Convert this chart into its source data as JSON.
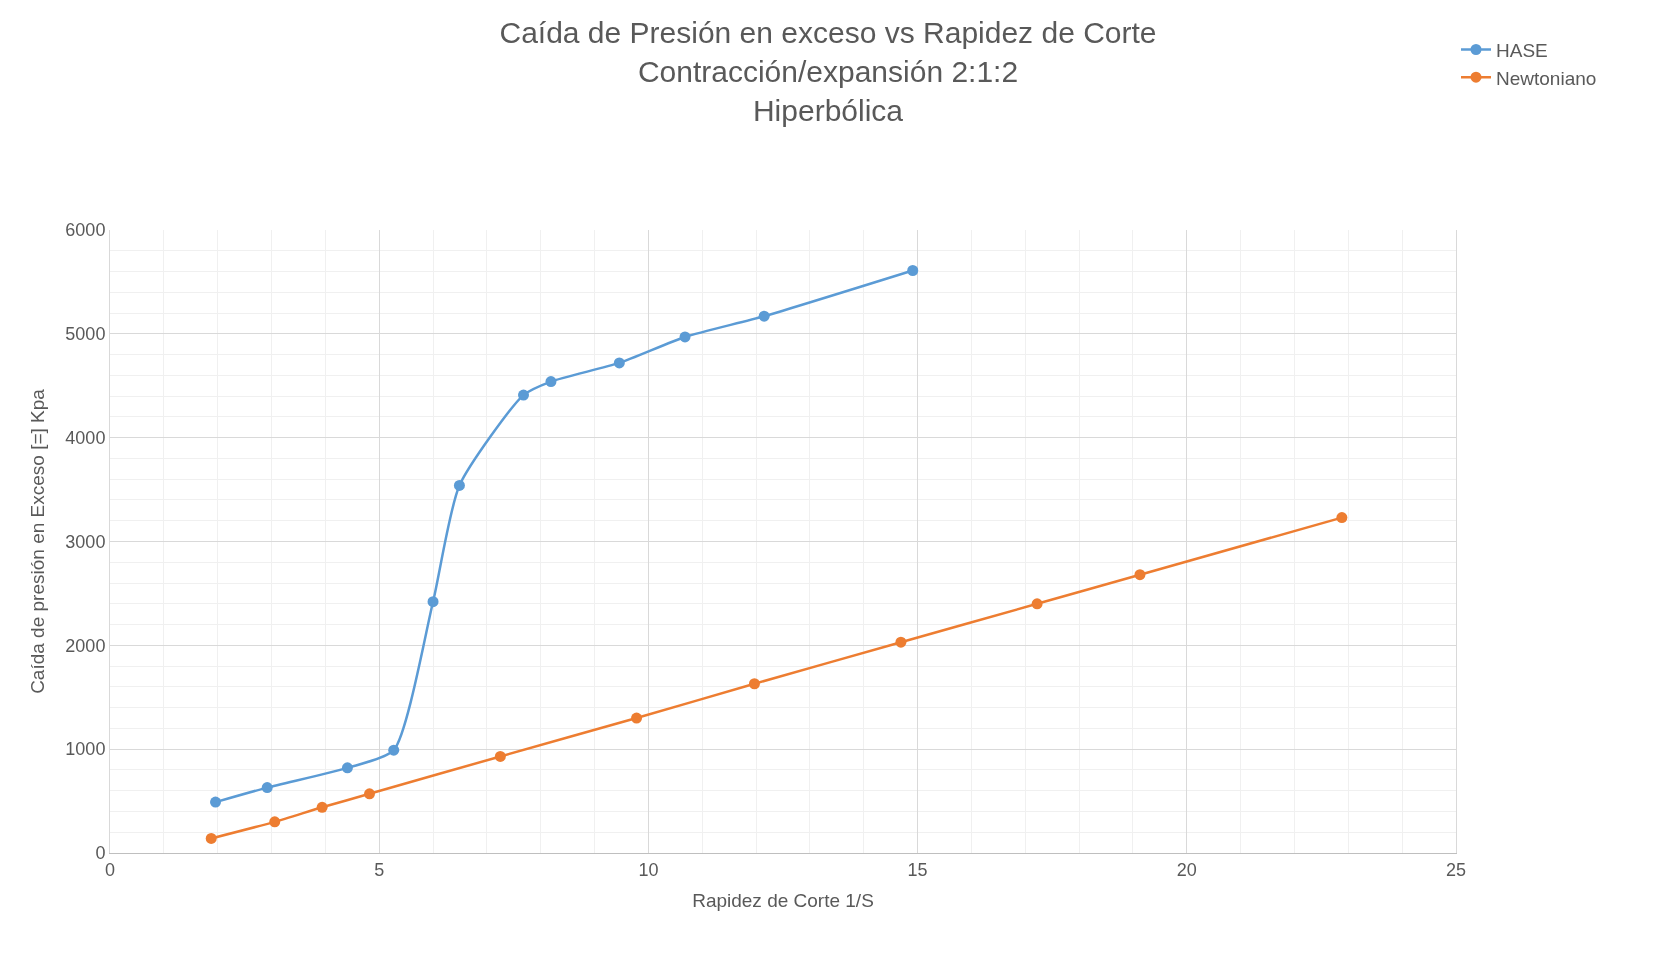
{
  "chart_data": {
    "type": "line",
    "title": "Caída de Presión en exceso vs Rapidez de Corte\nContracción/expansión 2:1:2\nHiperbólica",
    "xlabel": "Rapidez de Corte 1/S",
    "ylabel": "Caída de presión en Exceso [=] Kpa",
    "series": [
      {
        "name": "HASE",
        "color": "#5b9bd5",
        "x": [
          1.96,
          2.92,
          4.41,
          5.27,
          6.0,
          6.49,
          7.68,
          8.19,
          9.46,
          10.68,
          12.15,
          14.91
        ],
        "values": [
          490,
          630,
          820,
          990,
          2420,
          3540,
          4410,
          4540,
          4720,
          4970,
          5170,
          5610
        ]
      },
      {
        "name": "Newtoniano",
        "color": "#ed7d31",
        "x": [
          1.88,
          3.06,
          3.94,
          4.82,
          7.25,
          9.78,
          11.97,
          14.69,
          17.22,
          19.13,
          22.88
        ],
        "values": [
          140,
          300,
          440,
          570,
          930,
          1300,
          1630,
          2030,
          2400,
          2680,
          3230
        ]
      }
    ],
    "xlim": [
      0,
      25
    ],
    "xticks": [
      0,
      5,
      10,
      15,
      20,
      25
    ],
    "ylim": [
      0,
      6000
    ],
    "yticks": [
      0,
      1000,
      2000,
      3000,
      4000,
      5000,
      6000
    ],
    "grid": true,
    "legend": "top right",
    "marker": "circle",
    "line_style": "solid"
  }
}
